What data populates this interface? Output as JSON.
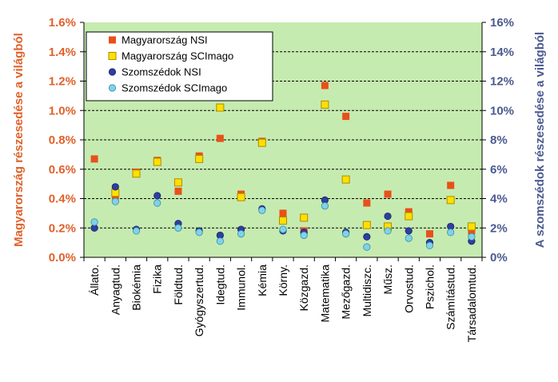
{
  "chart_data": {
    "type": "scatter",
    "categories": [
      "Állato.",
      "Anyagtud.",
      "Biokémia",
      "Fizika",
      "Földtud.",
      "Gyógyszertud.",
      "Idegtud.",
      "Immunol.",
      "Kémia",
      "Körny.",
      "Közgazd.",
      "Matematika",
      "Mezőgazd.",
      "Multidiszc.",
      "Műsz.",
      "Orvostud.",
      "Pszichol.",
      "Számítástud.",
      "Társadalomtud."
    ],
    "ylabel_left": "Magyarország részesedése a világból",
    "ylabel_right": "A szomszédok részesedése a világból",
    "left_ticks": [
      "0.0%",
      "0.2%",
      "0.4%",
      "0.6%",
      "0.8%",
      "1.0%",
      "1.2%",
      "1.4%",
      "1.6%"
    ],
    "right_ticks": [
      "0%",
      "2%",
      "4%",
      "6%",
      "8%",
      "10%",
      "12%",
      "14%",
      "16%"
    ],
    "ylim_left": [
      0,
      1.6
    ],
    "ylim_right": [
      0,
      16
    ],
    "series": [
      {
        "name": "Magyarország NSI",
        "axis": "left",
        "marker": "square",
        "color": "#e8501a",
        "values": [
          0.67,
          0.42,
          0.58,
          0.66,
          0.45,
          0.69,
          0.81,
          0.43,
          0.79,
          0.3,
          0.18,
          1.17,
          0.96,
          0.37,
          0.43,
          0.31,
          0.16,
          0.49,
          0.18
        ]
      },
      {
        "name": "Magyarország SCImago",
        "axis": "left",
        "marker": "square",
        "color": "#ffe000",
        "values": [
          null,
          0.44,
          0.57,
          0.65,
          0.51,
          0.67,
          1.02,
          0.41,
          0.78,
          0.25,
          0.27,
          1.04,
          0.53,
          0.22,
          0.21,
          0.28,
          null,
          0.39,
          0.21
        ]
      },
      {
        "name": "Szomszédok NSI",
        "axis": "right",
        "marker": "circle",
        "color": "#2e3f9e",
        "values": [
          2.0,
          4.8,
          1.9,
          4.2,
          2.3,
          1.8,
          1.5,
          1.9,
          3.3,
          1.8,
          1.7,
          3.9,
          1.7,
          1.4,
          2.8,
          1.8,
          1.0,
          2.1,
          1.1
        ]
      },
      {
        "name": "Szomszédok SCImago",
        "axis": "right",
        "marker": "circle",
        "color": "#7fd3e8",
        "values": [
          2.4,
          3.8,
          1.8,
          3.7,
          2.0,
          1.7,
          1.1,
          1.6,
          3.2,
          1.9,
          1.5,
          3.5,
          1.6,
          0.7,
          1.8,
          1.3,
          0.8,
          1.7,
          1.4
        ]
      }
    ]
  },
  "colors": {
    "plot_bg": "#c6ebb0",
    "left_axis": "#e0612a",
    "right_axis": "#4a5a8f"
  }
}
